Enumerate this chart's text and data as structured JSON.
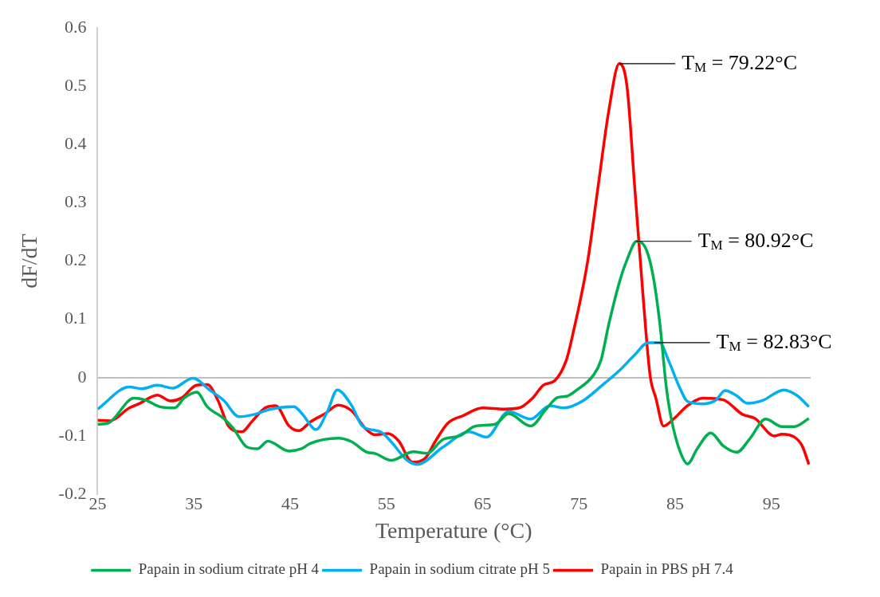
{
  "chart_data": {
    "type": "line",
    "xlabel": "Temperature (°C)",
    "ylabel": "dF/dT",
    "xlim": [
      25,
      99
    ],
    "xticks": [
      25,
      35,
      45,
      55,
      65,
      75,
      85,
      95
    ],
    "ylim": [
      -0.2,
      0.6
    ],
    "yticks": [
      -0.2,
      -0.1,
      0,
      0.1,
      0.2,
      0.3,
      0.4,
      0.5,
      0.6
    ],
    "legend": "bottom",
    "annotations": [
      {
        "text": "T$_{M}$ = 79.22°C",
        "x": 79.22,
        "y": 0.539
      },
      {
        "text": "T$_{M}$ = 80.92°C",
        "x": 80.92,
        "y": 0.234
      },
      {
        "text": "T$_{M}$ = 82.83°C",
        "x": 82.83,
        "y": 0.06
      }
    ],
    "series": [
      {
        "name": "Papain in sodium citrate pH 4",
        "color": "#00b050",
        "x": [
          25,
          26.1,
          28.8,
          29.9,
          31.5,
          33,
          34,
          35.3,
          36.4,
          38.1,
          39.1,
          40.5,
          41.6,
          42.7,
          44.9,
          46.2,
          47.1,
          50,
          51.4,
          53,
          53.8,
          55.5,
          57.8,
          59.2,
          60.9,
          62.6,
          64.3,
          66.3,
          67.7,
          70,
          71.6,
          72.8,
          73.7,
          74.8,
          76.5,
          77.3,
          78.1,
          79.2,
          80,
          81,
          82,
          82.7,
          83.4,
          84.1,
          84.6,
          85.5,
          86.3,
          87.3,
          88.7,
          90,
          91.4,
          92.8,
          94.4,
          96.1,
          97.4,
          98.9
        ],
        "values": [
          -0.08,
          -0.078,
          -0.035,
          -0.038,
          -0.05,
          -0.052,
          -0.035,
          -0.025,
          -0.05,
          -0.07,
          -0.087,
          -0.119,
          -0.122,
          -0.109,
          -0.126,
          -0.122,
          -0.113,
          -0.104,
          -0.11,
          -0.128,
          -0.13,
          -0.142,
          -0.127,
          -0.13,
          -0.106,
          -0.1,
          -0.083,
          -0.08,
          -0.062,
          -0.083,
          -0.054,
          -0.034,
          -0.032,
          -0.021,
          0.004,
          0.03,
          0.091,
          0.163,
          0.202,
          0.234,
          0.22,
          0.176,
          0.095,
          -0.018,
          -0.07,
          -0.126,
          -0.148,
          -0.122,
          -0.095,
          -0.117,
          -0.128,
          -0.104,
          -0.071,
          -0.084,
          -0.084,
          -0.07
        ]
      },
      {
        "name": "Papain in sodium citrate pH 5",
        "color": "#00b0f0",
        "x": [
          25,
          28.3,
          29.6,
          31.2,
          32.8,
          34.9,
          36.7,
          38.1,
          39.7,
          41.3,
          43,
          45.4,
          46.2,
          47.7,
          48.9,
          49.9,
          51.4,
          52.5,
          54.4,
          55.5,
          57.1,
          58.2,
          60.9,
          63.6,
          65.4,
          67.7,
          70,
          72,
          73.4,
          75.3,
          77.5,
          79.2,
          80.8,
          82.2,
          83.4,
          84.3,
          85.5,
          86.3,
          87.9,
          89.2,
          90.2,
          91.4,
          92.5,
          94.1,
          96.3,
          97.7,
          98.9
        ],
        "values": [
          -0.054,
          -0.016,
          -0.019,
          -0.013,
          -0.018,
          -0.001,
          -0.022,
          -0.039,
          -0.067,
          -0.063,
          -0.054,
          -0.05,
          -0.061,
          -0.089,
          -0.057,
          -0.021,
          -0.048,
          -0.083,
          -0.093,
          -0.11,
          -0.141,
          -0.149,
          -0.119,
          -0.093,
          -0.102,
          -0.058,
          -0.071,
          -0.048,
          -0.052,
          -0.041,
          -0.012,
          0.012,
          0.039,
          0.06,
          0.06,
          0.03,
          -0.018,
          -0.041,
          -0.045,
          -0.039,
          -0.022,
          -0.031,
          -0.044,
          -0.039,
          -0.021,
          -0.031,
          -0.05
        ]
      },
      {
        "name": "Papain in PBS pH 7.4",
        "color": "#ff0000",
        "x": [
          25,
          26.3,
          28.3,
          29.3,
          31.2,
          32.6,
          33.7,
          35.3,
          36.4,
          37.5,
          38.6,
          40,
          41,
          42.4,
          43.5,
          44.9,
          45.9,
          47.1,
          48.7,
          50,
          51.4,
          52.8,
          53.8,
          55.2,
          56.3,
          57.7,
          59,
          60.1,
          61.4,
          63,
          65,
          67.2,
          68.8,
          70.2,
          71.3,
          72.5,
          73.7,
          74.3,
          75.9,
          77,
          78.1,
          79.2,
          80,
          80.8,
          81.6,
          82.4,
          83,
          83.8,
          84.9,
          86.3,
          87.9,
          90,
          92,
          93.3,
          95.3,
          96.1,
          97.4,
          98.2,
          98.9
        ],
        "values": [
          -0.073,
          -0.074,
          -0.052,
          -0.045,
          -0.03,
          -0.04,
          -0.035,
          -0.013,
          -0.012,
          -0.039,
          -0.083,
          -0.093,
          -0.076,
          -0.052,
          -0.048,
          -0.083,
          -0.091,
          -0.076,
          -0.061,
          -0.047,
          -0.057,
          -0.087,
          -0.098,
          -0.096,
          -0.109,
          -0.145,
          -0.139,
          -0.109,
          -0.078,
          -0.065,
          -0.052,
          -0.054,
          -0.052,
          -0.035,
          -0.013,
          -0.005,
          0.03,
          0.069,
          0.198,
          0.328,
          0.457,
          0.539,
          0.5,
          0.328,
          0.155,
          0.004,
          -0.035,
          -0.083,
          -0.07,
          -0.048,
          -0.035,
          -0.038,
          -0.063,
          -0.07,
          -0.1,
          -0.097,
          -0.102,
          -0.117,
          -0.149
        ]
      }
    ]
  }
}
